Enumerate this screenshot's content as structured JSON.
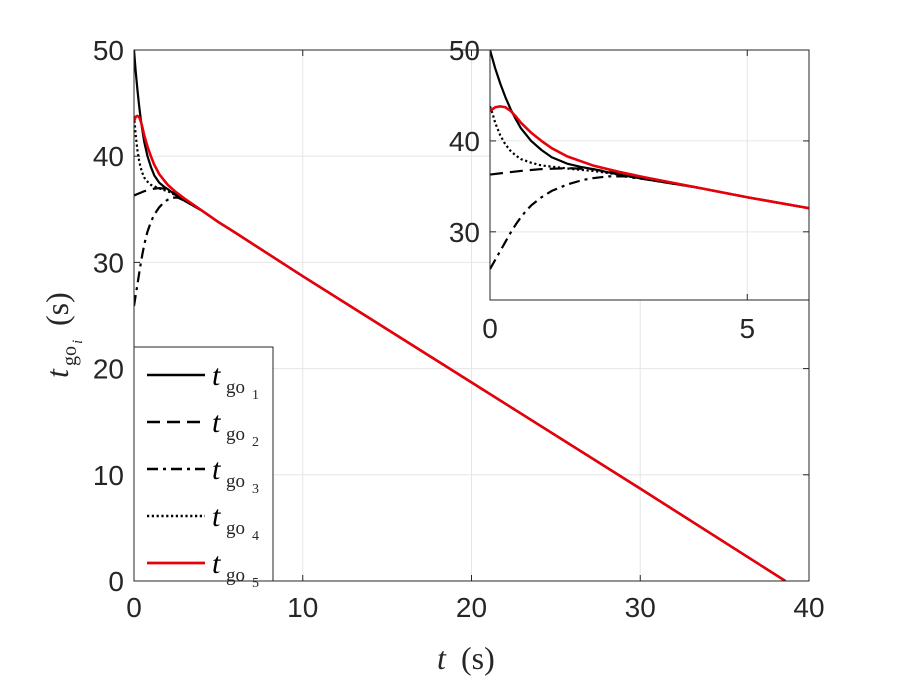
{
  "chart_data": [
    {
      "type": "line",
      "xlabel": "t (s)",
      "ylabel": "t_go_i (s)",
      "ylabel_display": {
        "main": "t",
        "sub": "go",
        "subsub": "i",
        "unit": "(s)"
      },
      "xlabel_display": {
        "main": "t",
        "unit": "(s)"
      },
      "xlim": [
        0,
        40
      ],
      "ylim": [
        0,
        50
      ],
      "xticks": [
        0,
        10,
        20,
        30,
        40
      ],
      "yticks": [
        0,
        10,
        20,
        30,
        40,
        50
      ],
      "xtick_labels": [
        "0",
        "10",
        "20",
        "30",
        "40"
      ],
      "ytick_labels": [
        "0",
        "10",
        "20",
        "30",
        "40",
        "50"
      ],
      "grid": true,
      "legend_position": "bottom-left",
      "legend": [
        "t_go_1",
        "t_go_2",
        "t_go_3",
        "t_go_4",
        "t_go_5"
      ],
      "series": [
        {
          "name": "t_go_1",
          "color": "#000000",
          "style": "solid",
          "x": [
            0,
            0.1,
            0.2,
            0.3,
            0.4,
            0.5,
            0.6,
            0.8,
            1.0,
            1.2,
            1.5,
            1.8,
            2.0,
            2.5,
            3.0,
            4.0,
            5.0,
            6.0,
            10,
            20,
            30,
            38.6
          ],
          "y": [
            50.0,
            48.0,
            46.3,
            44.8,
            43.5,
            42.4,
            41.4,
            40.0,
            39.0,
            38.2,
            37.5,
            37.1,
            36.9,
            36.3,
            35.8,
            34.9,
            33.8,
            32.8,
            28.7,
            18.7,
            8.7,
            0
          ]
        },
        {
          "name": "t_go_2",
          "color": "#000000",
          "style": "dashed",
          "x": [
            0,
            0.3,
            0.6,
            1.0,
            1.5,
            2.0,
            2.5,
            3.0,
            4.0,
            5.0,
            6.0,
            10,
            20,
            30,
            38.6
          ],
          "y": [
            36.3,
            36.5,
            36.7,
            36.9,
            37.0,
            36.9,
            36.4,
            35.9,
            34.9,
            33.8,
            32.8,
            28.7,
            18.7,
            8.7,
            0
          ]
        },
        {
          "name": "t_go_3",
          "color": "#000000",
          "style": "dashdot",
          "x": [
            0,
            0.1,
            0.2,
            0.3,
            0.4,
            0.5,
            0.6,
            0.7,
            0.8,
            1.0,
            1.2,
            1.5,
            1.8,
            2.0,
            2.3,
            2.6,
            3.0,
            4.0,
            5.0,
            6.0,
            10,
            20,
            30,
            38.6
          ],
          "y": [
            25.9,
            26.9,
            27.9,
            28.9,
            29.9,
            30.8,
            31.6,
            32.3,
            32.9,
            33.8,
            34.5,
            35.2,
            35.7,
            35.9,
            36.1,
            36.1,
            35.8,
            34.9,
            33.8,
            32.8,
            28.7,
            18.7,
            8.7,
            0
          ]
        },
        {
          "name": "t_go_4",
          "color": "#000000",
          "style": "dotted",
          "x": [
            0,
            0.05,
            0.1,
            0.2,
            0.3,
            0.4,
            0.5,
            0.6,
            0.8,
            1.0,
            1.3,
            1.6,
            2.0,
            2.5,
            3.0,
            4.0,
            5.0,
            6.0,
            10,
            20,
            30,
            38.6
          ],
          "y": [
            43.8,
            43.0,
            42.0,
            40.6,
            39.6,
            38.9,
            38.4,
            38.0,
            37.6,
            37.3,
            37.1,
            36.9,
            36.7,
            36.3,
            35.8,
            34.9,
            33.8,
            32.8,
            28.7,
            18.7,
            8.7,
            0
          ]
        },
        {
          "name": "t_go_5",
          "color": "#e8000b",
          "style": "solid",
          "x": [
            0,
            0.1,
            0.2,
            0.3,
            0.4,
            0.5,
            0.6,
            0.8,
            1.0,
            1.2,
            1.5,
            1.8,
            2.0,
            2.5,
            3.0,
            4.0,
            5.0,
            6.0,
            10,
            20,
            30,
            38.6
          ],
          "y": [
            43.3,
            43.7,
            43.8,
            43.7,
            43.3,
            42.7,
            42.0,
            40.9,
            40.0,
            39.2,
            38.3,
            37.7,
            37.3,
            36.6,
            36.0,
            34.9,
            33.8,
            32.8,
            28.7,
            18.7,
            8.7,
            0
          ]
        }
      ]
    },
    {
      "type": "line",
      "inset": true,
      "xlim": [
        0,
        6.2
      ],
      "ylim": [
        22.5,
        50
      ],
      "xticks": [
        0,
        5
      ],
      "yticks": [
        30,
        40,
        50
      ],
      "xtick_labels": [
        "0",
        "5"
      ],
      "ytick_labels": [
        "30",
        "40",
        "50"
      ],
      "grid": true,
      "series_ref": "same series as main plot, zoomed"
    }
  ]
}
